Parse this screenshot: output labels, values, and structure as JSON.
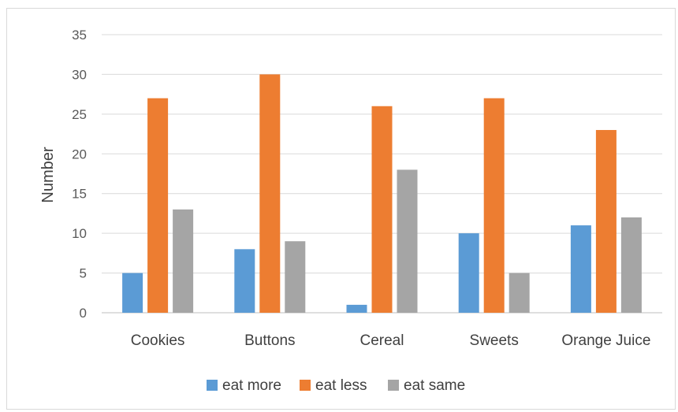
{
  "chart_data": {
    "type": "bar",
    "title": "",
    "xlabel": "",
    "ylabel": "Number",
    "ylim": [
      0,
      35
    ],
    "yticks": [
      0,
      5,
      10,
      15,
      20,
      25,
      30,
      35
    ],
    "grid": true,
    "legend_position": "bottom",
    "categories": [
      "Cookies",
      "Buttons",
      "Cereal",
      "Sweets",
      "Orange Juice"
    ],
    "series": [
      {
        "name": "eat more",
        "color": "#5b9bd5",
        "values": [
          5,
          8,
          1,
          10,
          11
        ]
      },
      {
        "name": "eat less",
        "color": "#ed7d31",
        "values": [
          27,
          30,
          26,
          27,
          23
        ]
      },
      {
        "name": "eat same",
        "color": "#a5a5a5",
        "values": [
          13,
          9,
          18,
          5,
          12
        ]
      }
    ]
  }
}
